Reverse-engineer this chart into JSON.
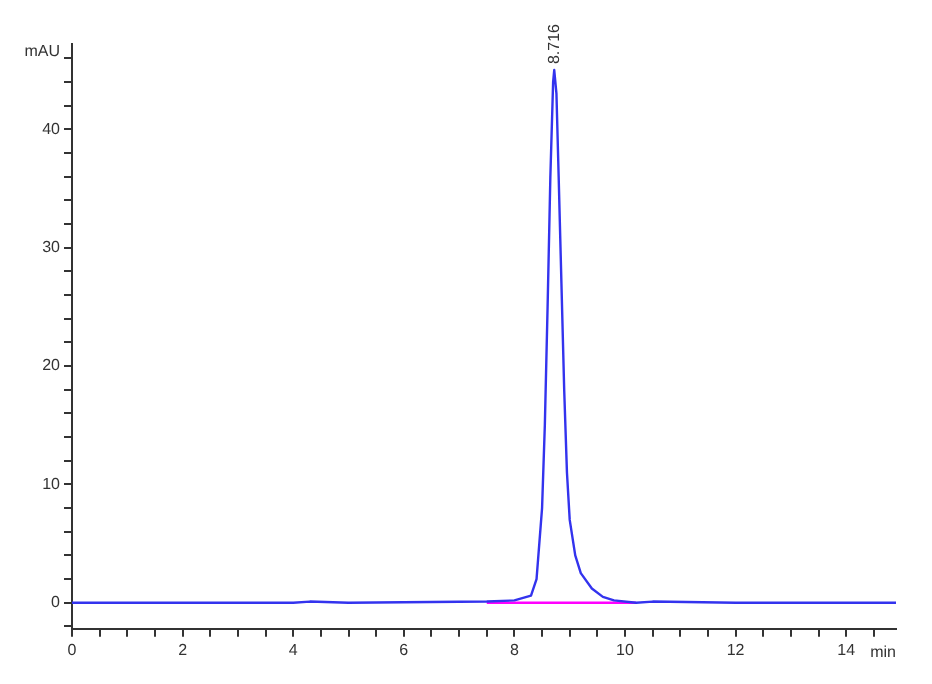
{
  "chart_data": {
    "type": "line",
    "xlabel": "min",
    "ylabel": "mAU",
    "x": [
      0,
      4,
      4.3,
      5,
      7.5,
      8.0,
      8.3,
      8.4,
      8.5,
      8.55,
      8.6,
      8.65,
      8.7,
      8.72,
      8.76,
      8.8,
      8.85,
      8.9,
      8.95,
      9.0,
      9.1,
      9.2,
      9.4,
      9.6,
      9.8,
      10.2,
      10.5,
      12,
      14.9
    ],
    "series": [
      {
        "color": "#3333ee",
        "values": [
          0,
          0,
          0.1,
          0,
          0.1,
          0.2,
          0.6,
          2,
          8,
          15,
          25,
          36,
          44,
          45,
          43,
          36,
          27,
          18,
          11,
          7,
          4,
          2.5,
          1.2,
          0.5,
          0.2,
          0,
          0.1,
          0,
          0
        ]
      },
      {
        "color": "#ff00ff",
        "x": [
          7.5,
          10.2
        ],
        "values": [
          0,
          0
        ]
      }
    ],
    "xlim": [
      0,
      14.9
    ],
    "ylim": [
      -2.2,
      47.2
    ],
    "xticks": [
      0,
      {
        "value": 0.5,
        "label": null
      },
      {
        "value": 1,
        "label": null
      },
      {
        "value": 1.5,
        "label": null
      },
      2,
      {
        "value": 2.5,
        "label": null
      },
      {
        "value": 3,
        "label": null
      },
      {
        "value": 3.5,
        "label": null
      },
      4,
      {
        "value": 4.5,
        "label": null
      },
      {
        "value": 5,
        "label": null
      },
      {
        "value": 5.5,
        "label": null
      },
      6,
      {
        "value": 6.5,
        "label": null
      },
      {
        "value": 7,
        "label": null
      },
      {
        "value": 7.5,
        "label": null
      },
      8,
      {
        "value": 8.5,
        "label": null
      },
      {
        "value": 9,
        "label": null
      },
      {
        "value": 9.5,
        "label": null
      },
      10,
      {
        "value": 10.5,
        "label": null
      },
      {
        "value": 11,
        "label": null
      },
      {
        "value": 11.5,
        "label": null
      },
      12,
      {
        "value": 12.5,
        "label": null
      },
      {
        "value": 13,
        "label": null
      },
      {
        "value": 13.5,
        "label": null
      },
      14,
      {
        "value": 14.5,
        "label": null
      }
    ],
    "yticks": [
      {
        "value": -2,
        "label": null
      },
      0,
      {
        "value": 2,
        "label": null
      },
      {
        "value": 4,
        "label": null
      },
      {
        "value": 6,
        "label": null
      },
      {
        "value": 8,
        "label": null
      },
      10,
      {
        "value": 12,
        "label": null
      },
      {
        "value": 14,
        "label": null
      },
      {
        "value": 16,
        "label": null
      },
      {
        "value": 18,
        "label": null
      },
      20,
      {
        "value": 22,
        "label": null
      },
      {
        "value": 24,
        "label": null
      },
      {
        "value": 26,
        "label": null
      },
      {
        "value": 28,
        "label": null
      },
      30,
      {
        "value": 32,
        "label": null
      },
      {
        "value": 34,
        "label": null
      },
      {
        "value": 36,
        "label": null
      },
      {
        "value": 38,
        "label": null
      },
      40,
      {
        "value": 42,
        "label": null
      },
      {
        "value": 44,
        "label": null
      },
      {
        "value": 46,
        "label": null
      }
    ],
    "annotations": [
      {
        "text": "8.716",
        "x": 8.72,
        "y": 45
      }
    ],
    "grid": false,
    "legend": false,
    "marker": "none",
    "line_style": "solid"
  }
}
